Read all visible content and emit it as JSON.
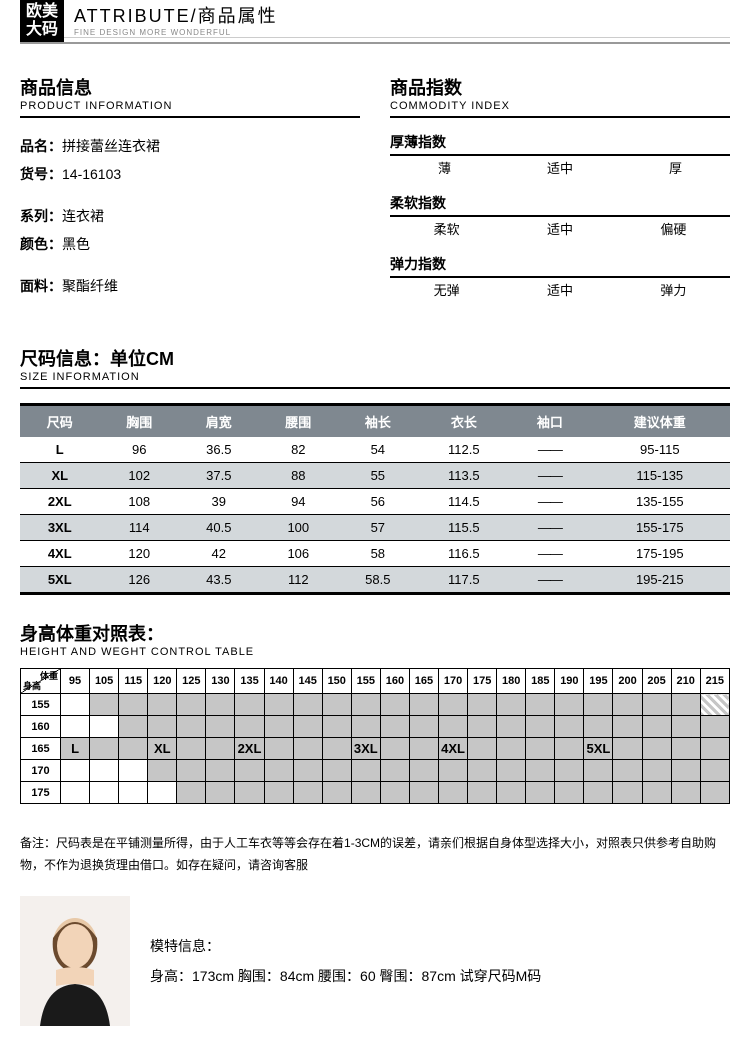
{
  "header": {
    "badge_line1": "欧美",
    "badge_line2": "大码",
    "title_main": "ATTRIBUTE/商品属性",
    "title_sub": "FINE DESIGN MORE WONDERFUL"
  },
  "product_info": {
    "title_cn": "商品信息",
    "title_en": "PRODUCT INFORMATION",
    "items": [
      {
        "label": "品名：",
        "value": "拼接蕾丝连衣裙"
      },
      {
        "label": "货号：",
        "value": "14-16103"
      },
      {
        "label": "系列：",
        "value": "连衣裙"
      },
      {
        "label": "颜色：",
        "value": "黑色"
      },
      {
        "label": "面料：",
        "value": "聚酯纤维"
      }
    ]
  },
  "commodity_index": {
    "title_cn": "商品指数",
    "title_en": "COMMODITY INDEX",
    "indices": [
      {
        "label": "厚薄指数",
        "opts": [
          "薄",
          "适中",
          "厚"
        ]
      },
      {
        "label": "柔软指数",
        "opts": [
          "柔软",
          "适中",
          "偏硬"
        ]
      },
      {
        "label": "弹力指数",
        "opts": [
          "无弹",
          "适中",
          "弹力"
        ]
      }
    ]
  },
  "size_info": {
    "title_cn": "尺码信息：单位CM",
    "title_en": "SIZE INFORMATION",
    "columns": [
      "尺码",
      "胸围",
      "肩宽",
      "腰围",
      "袖长",
      "衣长",
      "袖口",
      "建议体重"
    ],
    "rows": [
      [
        "L",
        "96",
        "36.5",
        "82",
        "54",
        "112.5",
        "——",
        "95-115"
      ],
      [
        "XL",
        "102",
        "37.5",
        "88",
        "55",
        "113.5",
        "——",
        "115-135"
      ],
      [
        "2XL",
        "108",
        "39",
        "94",
        "56",
        "114.5",
        "——",
        "135-155"
      ],
      [
        "3XL",
        "114",
        "40.5",
        "100",
        "57",
        "115.5",
        "——",
        "155-175"
      ],
      [
        "4XL",
        "120",
        "42",
        "106",
        "58",
        "116.5",
        "——",
        "175-195"
      ],
      [
        "5XL",
        "126",
        "43.5",
        "112",
        "58.5",
        "117.5",
        "——",
        "195-215"
      ]
    ]
  },
  "control_table": {
    "title_cn": "身高体重对照表：",
    "title_en": "HEIGHT AND WEGHT CONTROL TABLE",
    "corner_top": "体重",
    "corner_bottom": "身高",
    "weights": [
      "95",
      "105",
      "115",
      "120",
      "125",
      "130",
      "135",
      "140",
      "145",
      "150",
      "155",
      "160",
      "165",
      "170",
      "175",
      "180",
      "185",
      "190",
      "195",
      "200",
      "205",
      "210",
      "215"
    ],
    "heights": [
      "155",
      "160",
      "165",
      "170",
      "175"
    ],
    "label_row_index": 2,
    "labels": {
      "0": "L",
      "3": "XL",
      "6": "2XL",
      "10": "3XL",
      "13": "4XL",
      "18": "5XL"
    },
    "shade": [
      [
        0,
        1,
        1,
        1,
        1,
        1,
        1,
        1,
        1,
        1,
        1,
        1,
        1,
        1,
        1,
        1,
        1,
        1,
        1,
        1,
        1,
        1,
        2
      ],
      [
        0,
        0,
        1,
        1,
        1,
        1,
        1,
        1,
        1,
        1,
        1,
        1,
        1,
        1,
        1,
        1,
        1,
        1,
        1,
        1,
        1,
        1,
        1
      ],
      [
        1,
        1,
        1,
        1,
        1,
        1,
        1,
        1,
        1,
        1,
        1,
        1,
        1,
        1,
        1,
        1,
        1,
        1,
        1,
        1,
        1,
        1,
        1
      ],
      [
        0,
        0,
        0,
        1,
        1,
        1,
        1,
        1,
        1,
        1,
        1,
        1,
        1,
        1,
        1,
        1,
        1,
        1,
        1,
        1,
        1,
        1,
        1
      ],
      [
        0,
        0,
        0,
        0,
        1,
        1,
        1,
        1,
        1,
        1,
        1,
        1,
        1,
        1,
        1,
        1,
        1,
        1,
        1,
        1,
        1,
        1,
        1
      ]
    ]
  },
  "note": {
    "prefix": "备注：",
    "text": "尺码表是在平铺测量所得，由于人工车衣等等会存在着1-3CM的误差，请亲们根据自身体型选择大小，对照表只供参考自助购物，不作为退换货理由借口。如存在疑问，请咨询客服"
  },
  "model": {
    "title": "模特信息：",
    "detail": "身高：173cm  胸围：84cm  腰围：60  臀围：87cm  试穿尺码M码"
  }
}
